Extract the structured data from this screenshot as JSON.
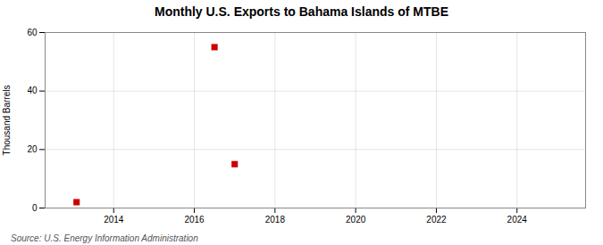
{
  "chart_data": {
    "type": "scatter",
    "title": "Monthly U.S. Exports to Bahama Islands of MTBE",
    "ylabel": "Thousand Barrels",
    "source": "Source: U.S. Energy Information Administration",
    "x": [
      2013.08,
      2016.5,
      2017.0
    ],
    "values": [
      2,
      55,
      15
    ],
    "color": "#cc0000",
    "marker": "square",
    "xlim": [
      2012.3,
      2025.7
    ],
    "xticks": [
      2014,
      2016,
      2018,
      2020,
      2022,
      2024
    ],
    "ylim": [
      0,
      60
    ],
    "yticks": [
      0,
      20,
      40,
      60
    ],
    "grid": true
  }
}
